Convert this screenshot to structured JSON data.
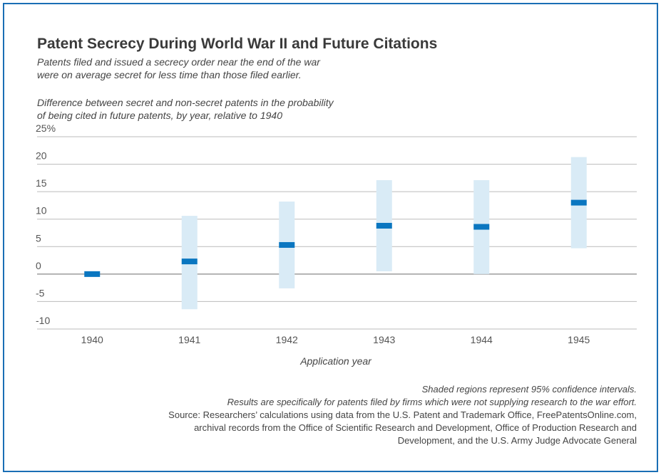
{
  "chart_data": {
    "type": "range-dot",
    "title": "Patent Secrecy During World War II and Future Citations",
    "subtitle": [
      "Patents filed and issued a secrecy order near the end of the war",
      "were on average secret for less time than those filed earlier."
    ],
    "y_label": [
      "Difference between secret and non-secret patents in the probability",
      "of being cited in future patents, by year, relative to 1940"
    ],
    "x_label": "Application year",
    "categories": [
      "1940",
      "1941",
      "1942",
      "1943",
      "1944",
      "1945"
    ],
    "values": [
      0,
      2.3,
      5.3,
      8.8,
      8.6,
      13
    ],
    "lower": [
      null,
      -6.4,
      -2.6,
      0.5,
      0,
      4.7
    ],
    "upper": [
      null,
      10.6,
      13.2,
      17.1,
      17.1,
      21.3
    ],
    "color": "#0a76c0",
    "range_color": "#d9ebf6",
    "ylim": [
      -10,
      25
    ],
    "yticks": [
      -10,
      -5,
      0,
      5,
      10,
      15,
      20,
      {
        "value": 25,
        "label": "25%"
      }
    ],
    "grid": true,
    "notes": [
      "Shaded regions represent 95% confidence intervals.",
      "Results are specifically for patents filed by firms which were not supplying research to the war effort.",
      "Source: Researchers’ calculations using data from the U.S. Patent and Trademark Office, FreePatentsOnline.com,",
      "archival records from the Office of Scientific Research and Development, Office of Production Research and",
      "Development, and the U.S. Army Judge Advocate General"
    ]
  }
}
